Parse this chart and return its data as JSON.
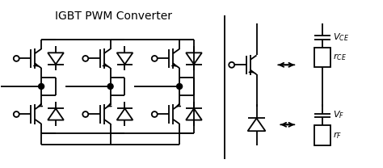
{
  "title": "IGBT PWM Converter",
  "title_fontsize": 10,
  "bg_color": "#ffffff",
  "line_color": "#000000",
  "line_width": 1.3,
  "fig_width": 4.74,
  "fig_height": 2.08,
  "dpi": 100
}
